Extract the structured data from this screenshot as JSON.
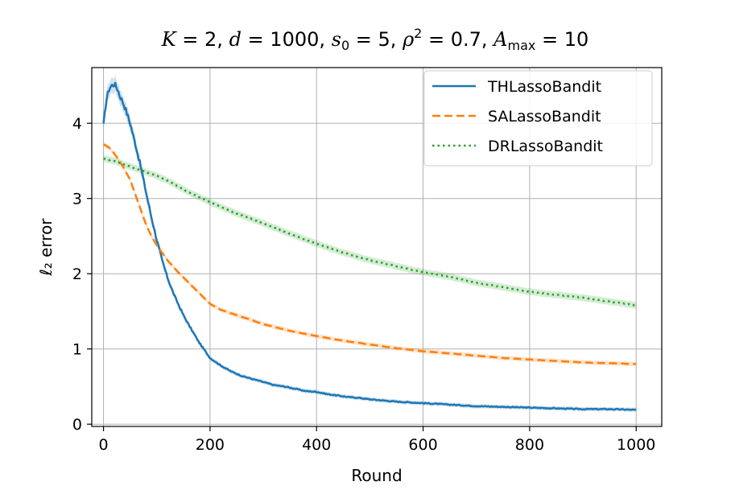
{
  "chart_data": {
    "type": "line",
    "title": "K = 2, d = 1000, s₀ = 5, ρ² = 0.7, A_max = 10",
    "xlabel": "Round",
    "ylabel": "ℓ₂ error",
    "xlim": [
      -22,
      1048
    ],
    "ylim": [
      -0.03,
      4.74
    ],
    "xticks": [
      "0",
      "200",
      "400",
      "600",
      "800",
      "1000"
    ],
    "yticks": [
      "0",
      "1",
      "2",
      "3",
      "4"
    ],
    "grid": true,
    "legend_position": "top-right",
    "series": [
      {
        "name": "THLassoBandit",
        "color": "#1f77b4",
        "style": "solid",
        "x": [
          0,
          5,
          10,
          15,
          20,
          25,
          30,
          40,
          50,
          60,
          70,
          80,
          90,
          100,
          110,
          120,
          130,
          140,
          150,
          160,
          170,
          180,
          190,
          200,
          220,
          240,
          260,
          280,
          300,
          320,
          340,
          360,
          380,
          400,
          420,
          440,
          460,
          480,
          500,
          550,
          600,
          650,
          700,
          750,
          800,
          850,
          900,
          950,
          1000
        ],
        "values": [
          3.97,
          4.3,
          4.45,
          4.5,
          4.52,
          4.48,
          4.38,
          4.22,
          4.0,
          3.72,
          3.42,
          3.08,
          2.75,
          2.45,
          2.18,
          1.95,
          1.76,
          1.6,
          1.45,
          1.32,
          1.2,
          1.08,
          0.98,
          0.88,
          0.78,
          0.7,
          0.64,
          0.6,
          0.56,
          0.52,
          0.5,
          0.47,
          0.44,
          0.43,
          0.4,
          0.38,
          0.36,
          0.35,
          0.33,
          0.3,
          0.28,
          0.26,
          0.24,
          0.23,
          0.22,
          0.21,
          0.2,
          0.2,
          0.19
        ]
      },
      {
        "name": "SALassoBandit",
        "color": "#ff7f0e",
        "style": "dashed",
        "x": [
          0,
          10,
          20,
          30,
          40,
          50,
          60,
          70,
          80,
          90,
          100,
          120,
          140,
          160,
          180,
          200,
          220,
          250,
          300,
          350,
          400,
          450,
          500,
          550,
          600,
          650,
          700,
          750,
          800,
          850,
          900,
          950,
          1000
        ],
        "values": [
          3.72,
          3.68,
          3.6,
          3.5,
          3.38,
          3.25,
          3.05,
          2.85,
          2.65,
          2.5,
          2.38,
          2.18,
          2.02,
          1.88,
          1.74,
          1.6,
          1.52,
          1.45,
          1.33,
          1.24,
          1.17,
          1.11,
          1.06,
          1.01,
          0.97,
          0.94,
          0.91,
          0.88,
          0.86,
          0.84,
          0.82,
          0.81,
          0.8
        ]
      },
      {
        "name": "DRLassoBandit",
        "color": "#2ca02c",
        "style": "dotted",
        "x": [
          0,
          20,
          40,
          60,
          80,
          100,
          120,
          150,
          200,
          250,
          300,
          350,
          400,
          450,
          500,
          550,
          600,
          650,
          700,
          750,
          800,
          850,
          900,
          950,
          1000
        ],
        "values": [
          3.53,
          3.5,
          3.45,
          3.4,
          3.35,
          3.3,
          3.24,
          3.12,
          2.95,
          2.8,
          2.67,
          2.53,
          2.4,
          2.28,
          2.18,
          2.1,
          2.02,
          1.96,
          1.88,
          1.82,
          1.76,
          1.72,
          1.68,
          1.63,
          1.58
        ]
      }
    ]
  }
}
